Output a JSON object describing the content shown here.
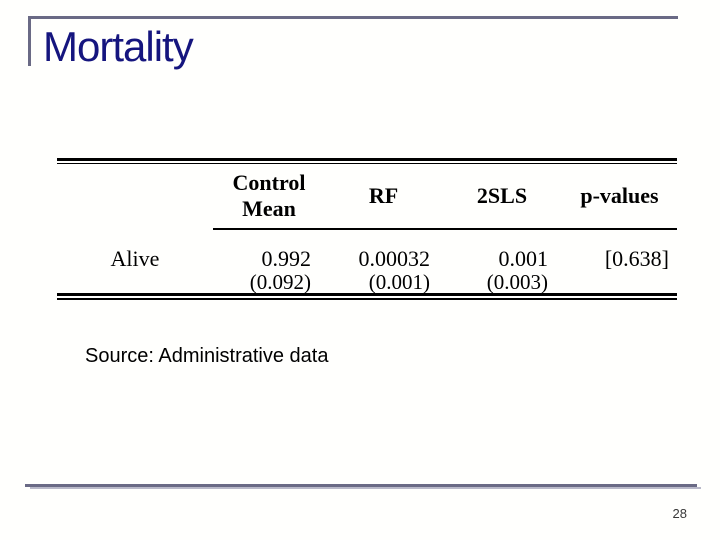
{
  "slide": {
    "title": "Mortality",
    "source_note": "Source: Administrative data",
    "page_number": "28"
  },
  "table": {
    "columns": [
      "Control Mean",
      "RF",
      "2SLS",
      "p-values"
    ],
    "rows": [
      {
        "label": "Alive",
        "values": [
          "0.992",
          "0.00032",
          "0.001",
          "[0.638]"
        ],
        "std_errors": [
          "(0.092)",
          "(0.001)",
          "(0.003)",
          ""
        ]
      }
    ]
  },
  "colors": {
    "title": "#15157e",
    "template_rule": "#6a6a85",
    "template_rule_shadow": "#b9b9c9",
    "table_text": "#000000"
  }
}
